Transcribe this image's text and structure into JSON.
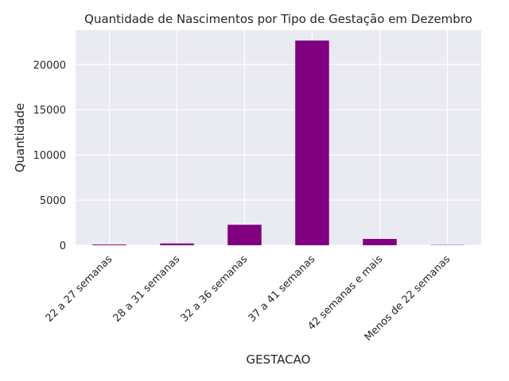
{
  "chart_data": {
    "type": "bar",
    "title": "Quantidade de Nascimentos por Tipo de Gestação em Dezembro",
    "xlabel": "GESTACAO",
    "ylabel": "Quantidade",
    "categories": [
      "22 a 27 semanas",
      "28 a 31 semanas",
      "32 a 36 semanas",
      "37 a 41 semanas",
      "42 semanas e mais",
      "Menos de 22 semanas"
    ],
    "values": [
      80,
      200,
      2270,
      22650,
      700,
      30
    ],
    "yticks": [
      0,
      5000,
      10000,
      15000,
      20000
    ],
    "ytick_labels": [
      "0",
      "5000",
      "10000",
      "15000",
      "20000"
    ],
    "ylim": [
      0,
      23800
    ],
    "grid": true,
    "bar_color": "#800080",
    "plot_background": "#eaeaf2",
    "grid_color": "#ffffff"
  }
}
